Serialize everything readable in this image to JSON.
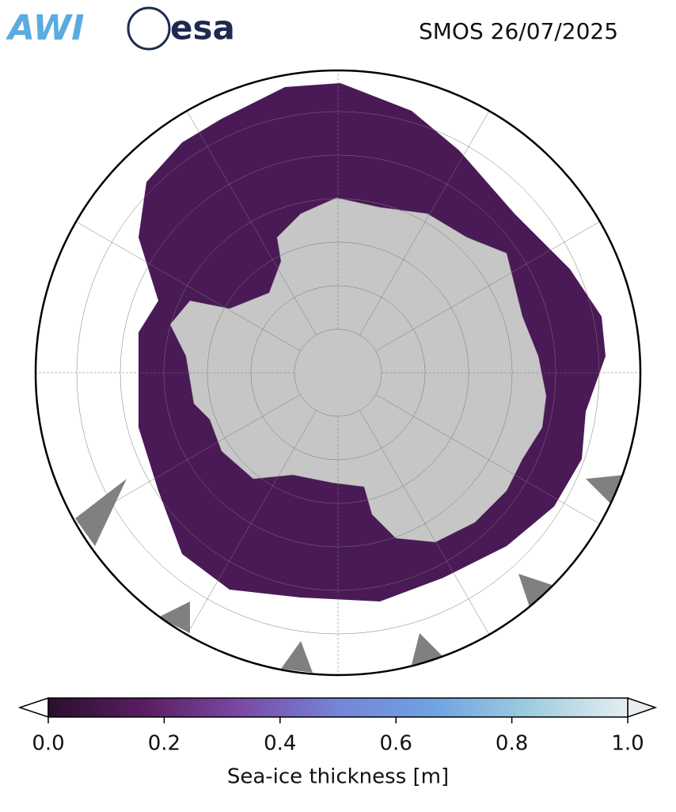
{
  "header": {
    "logos": [
      "AWI",
      "esa"
    ],
    "title": "SMOS 26/07/2025"
  },
  "colorbar": {
    "label": "Sea-ice thickness [m]",
    "lim": [
      0,
      1
    ],
    "ticks": [
      {
        "value": 0,
        "label": "0.0"
      },
      {
        "value": 0.2,
        "label": "0.2"
      },
      {
        "value": 0.4,
        "label": "0.4"
      },
      {
        "value": 0.6,
        "label": "0.6"
      },
      {
        "value": 0.8,
        "label": "0.8"
      },
      {
        "value": 1,
        "label": "1.0"
      }
    ],
    "colors": [
      "#2b0f2e",
      "#5a1d62",
      "#7a4aa6",
      "#7485d8",
      "#6fa3e2",
      "#9fcde0",
      "#e6eef0"
    ]
  }
}
